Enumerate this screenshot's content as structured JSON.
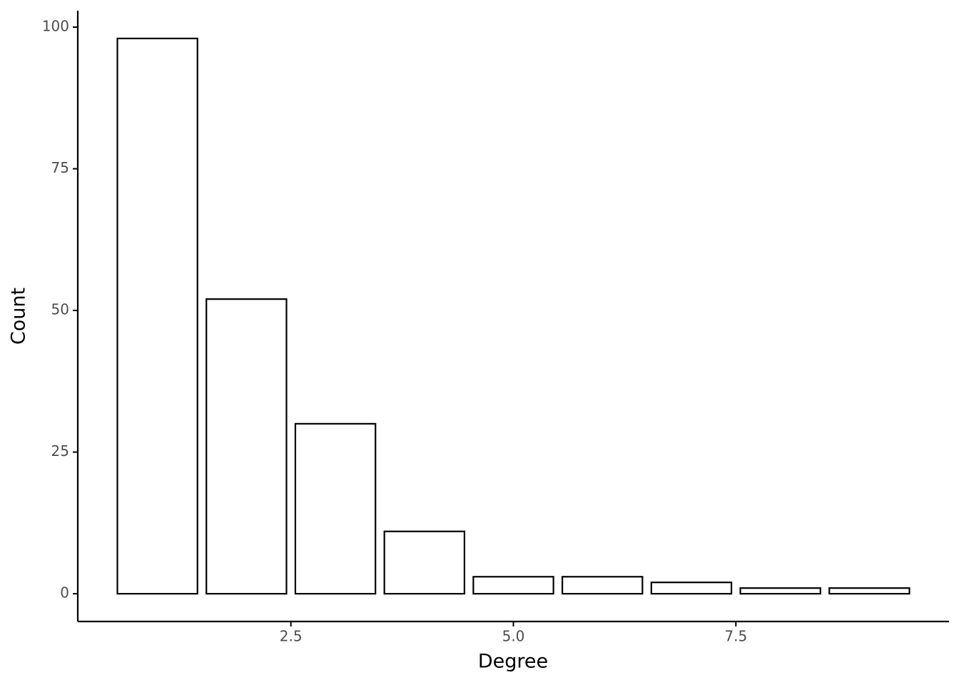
{
  "chart_data": {
    "type": "bar",
    "x_label": "Degree",
    "y_label": "Count",
    "x": [
      1,
      2,
      3,
      4,
      5,
      6,
      7,
      8,
      9
    ],
    "values": [
      98,
      52,
      30,
      11,
      3,
      3,
      2,
      1,
      1
    ],
    "color": "#ffffff",
    "edge_color": "#000000",
    "xlim": [
      0.105,
      9.895
    ],
    "xticks": [
      2.5,
      {
        "value": 5,
        "label": "5.0"
      },
      7.5
    ],
    "ylim": [
      -4.9,
      102.9
    ],
    "yticks": [
      0,
      25,
      50,
      75,
      100
    ],
    "grid": false
  }
}
